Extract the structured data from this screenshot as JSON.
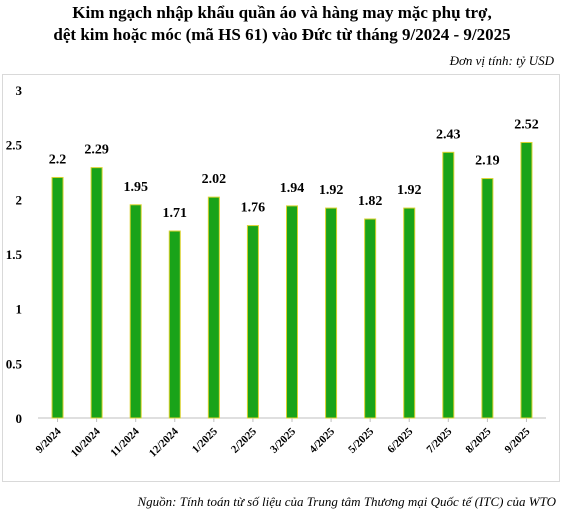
{
  "title_line1": "Kim ngạch nhập khẩu quần áo và hàng may mặc phụ trợ,",
  "title_line2": "dệt kim hoặc móc (mã HS 61) vào Đức từ tháng 9/2024 - 9/2025",
  "unit": "Đơn vị tính: tỷ USD",
  "source": "Nguồn: Tính toán từ số liệu của Trung tâm Thương mại Quốc tế (ITC) của WTO",
  "colors": {
    "bar_fill": "#19a319",
    "bar_stroke": "#d9d22e",
    "axis": "#bfbfbf"
  },
  "chart_data": {
    "type": "bar",
    "categories": [
      "9/2024",
      "10/2024",
      "11/2024",
      "12/2024",
      "1/2025",
      "2/2025",
      "3/2025",
      "4/2025",
      "5/2025",
      "6/2025",
      "7/2025",
      "8/2025",
      "9/2025"
    ],
    "values": [
      2.2,
      2.29,
      1.95,
      1.71,
      2.02,
      1.76,
      1.94,
      1.92,
      1.82,
      1.92,
      2.43,
      2.19,
      2.52
    ],
    "value_labels": [
      "2.2",
      "2.29",
      "1.95",
      "1.71",
      "2.02",
      "1.76",
      "1.94",
      "1.92",
      "1.82",
      "1.92",
      "2.43",
      "2.19",
      "2.52"
    ],
    "yticks": [
      "0",
      "0.5",
      "1",
      "1.5",
      "2",
      "2.5",
      "3"
    ],
    "ylim": [
      0,
      3
    ],
    "grid": false,
    "legend": "none"
  }
}
